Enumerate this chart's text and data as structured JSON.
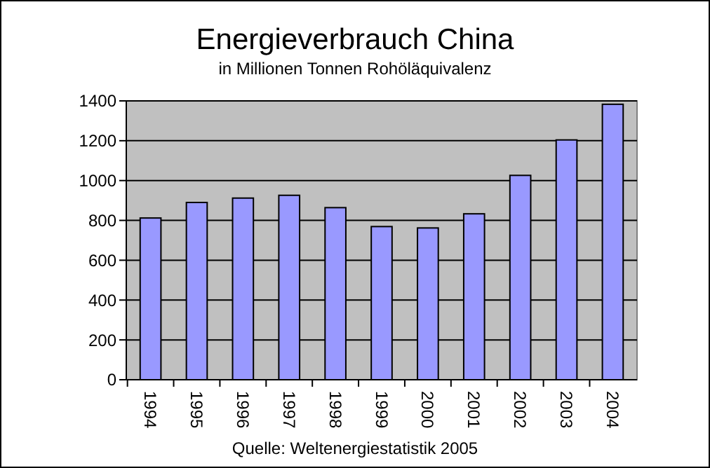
{
  "chart_data": {
    "type": "bar",
    "title": "Energieverbrauch China",
    "subtitle": "in Millionen Tonnen Rohöläquivalenz",
    "categories": [
      "1994",
      "1995",
      "1996",
      "1997",
      "1998",
      "1999",
      "2000",
      "2001",
      "2002",
      "2003",
      "2004"
    ],
    "values": [
      812,
      890,
      912,
      926,
      864,
      769,
      762,
      833,
      1026,
      1204,
      1383
    ],
    "color": "#9999ff",
    "ylim": [
      0,
      1400
    ],
    "yticks": [
      0,
      200,
      400,
      600,
      800,
      1000,
      1200,
      1400
    ],
    "grid": "y",
    "annotations": [
      "Quelle: Weltenergiestatistik 2005"
    ]
  }
}
